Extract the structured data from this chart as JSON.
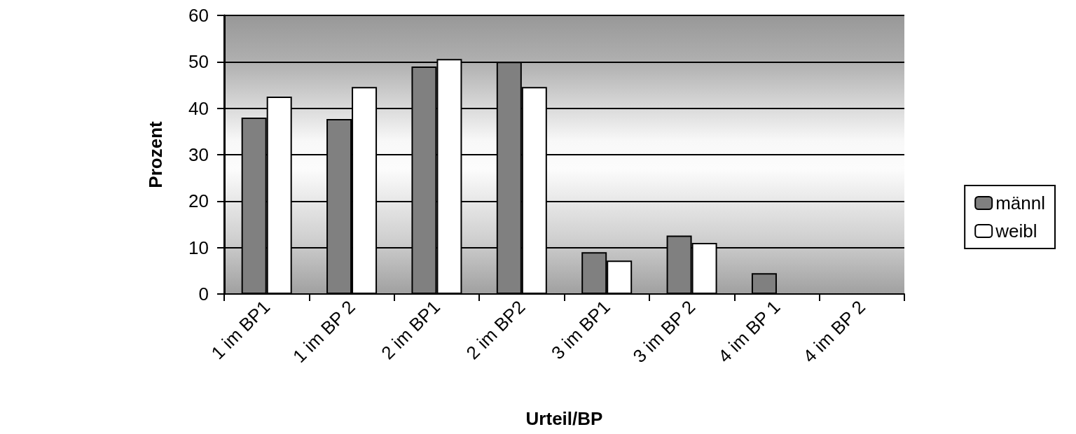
{
  "chart_data": {
    "type": "bar",
    "xlabel": "Urteil/BP",
    "ylabel": "Prozent",
    "categories": [
      "1 im BP1",
      "1 im BP 2",
      "2 im BP1",
      "2 im BP2",
      "3 im BP1",
      "3 im BP 2",
      "4 im BP 1",
      "4 im BP 2"
    ],
    "series": [
      {
        "name": "männl",
        "color": "#808080",
        "values": [
          38.0,
          37.7,
          49.0,
          50.0,
          9.0,
          12.6,
          4.5,
          null
        ]
      },
      {
        "name": "weibl",
        "color": "#ffffff",
        "values": [
          42.5,
          44.6,
          50.6,
          44.6,
          7.2,
          11.0,
          null,
          null
        ]
      }
    ],
    "ylim": [
      0,
      60
    ],
    "yticks": [
      0,
      10,
      20,
      30,
      40,
      50,
      60
    ],
    "grid": "y",
    "legend": "right"
  }
}
